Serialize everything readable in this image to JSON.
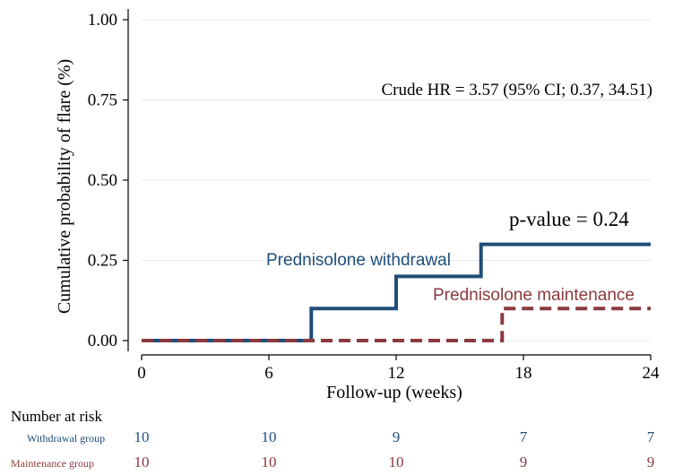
{
  "chart_data": {
    "type": "line",
    "step": true,
    "xlabel": "Follow-up (weeks)",
    "ylabel": "Cumulative probability of flare (%)",
    "xlim": [
      0,
      24
    ],
    "ylim": [
      0,
      1
    ],
    "xticks": [
      0,
      6,
      12,
      18,
      24
    ],
    "xtick_labels": [
      "0",
      "6",
      "12",
      "18",
      "24"
    ],
    "yticks": [
      0,
      0.25,
      0.5,
      0.75,
      1
    ],
    "ytick_labels": [
      "0.00",
      "0.25",
      "0.50",
      "0.75",
      "1.00"
    ],
    "grid": "horizontal",
    "series": [
      {
        "name": "Prednisolone withdrawal",
        "color": "#1f4e79",
        "style": "solid",
        "x": [
          0,
          8,
          8,
          12,
          12,
          16,
          16,
          24
        ],
        "y": [
          0,
          0,
          0.1,
          0.1,
          0.2,
          0.2,
          0.3,
          0.3
        ]
      },
      {
        "name": "Prednisolone maintenance",
        "color": "#8b3a3f",
        "style": "dashed",
        "x": [
          0,
          17,
          17,
          24
        ],
        "y": [
          0,
          0,
          0.1,
          0.1
        ]
      }
    ],
    "annotations": {
      "hr": "Crude HR = 3.57 (95% CI; 0.37, 34.51)",
      "pvalue": "p-value = 0.24"
    }
  },
  "risk_table": {
    "title": "Number at risk",
    "times": [
      0,
      6,
      12,
      18,
      24
    ],
    "groups": [
      {
        "label": "Withdrawal group",
        "color": "#1f4e79",
        "counts": [
          "10",
          "10",
          "9",
          "7",
          "7"
        ]
      },
      {
        "label": "Maintenance group",
        "color": "#8b3a3f",
        "counts": [
          "10",
          "10",
          "10",
          "9",
          "9"
        ]
      }
    ]
  }
}
